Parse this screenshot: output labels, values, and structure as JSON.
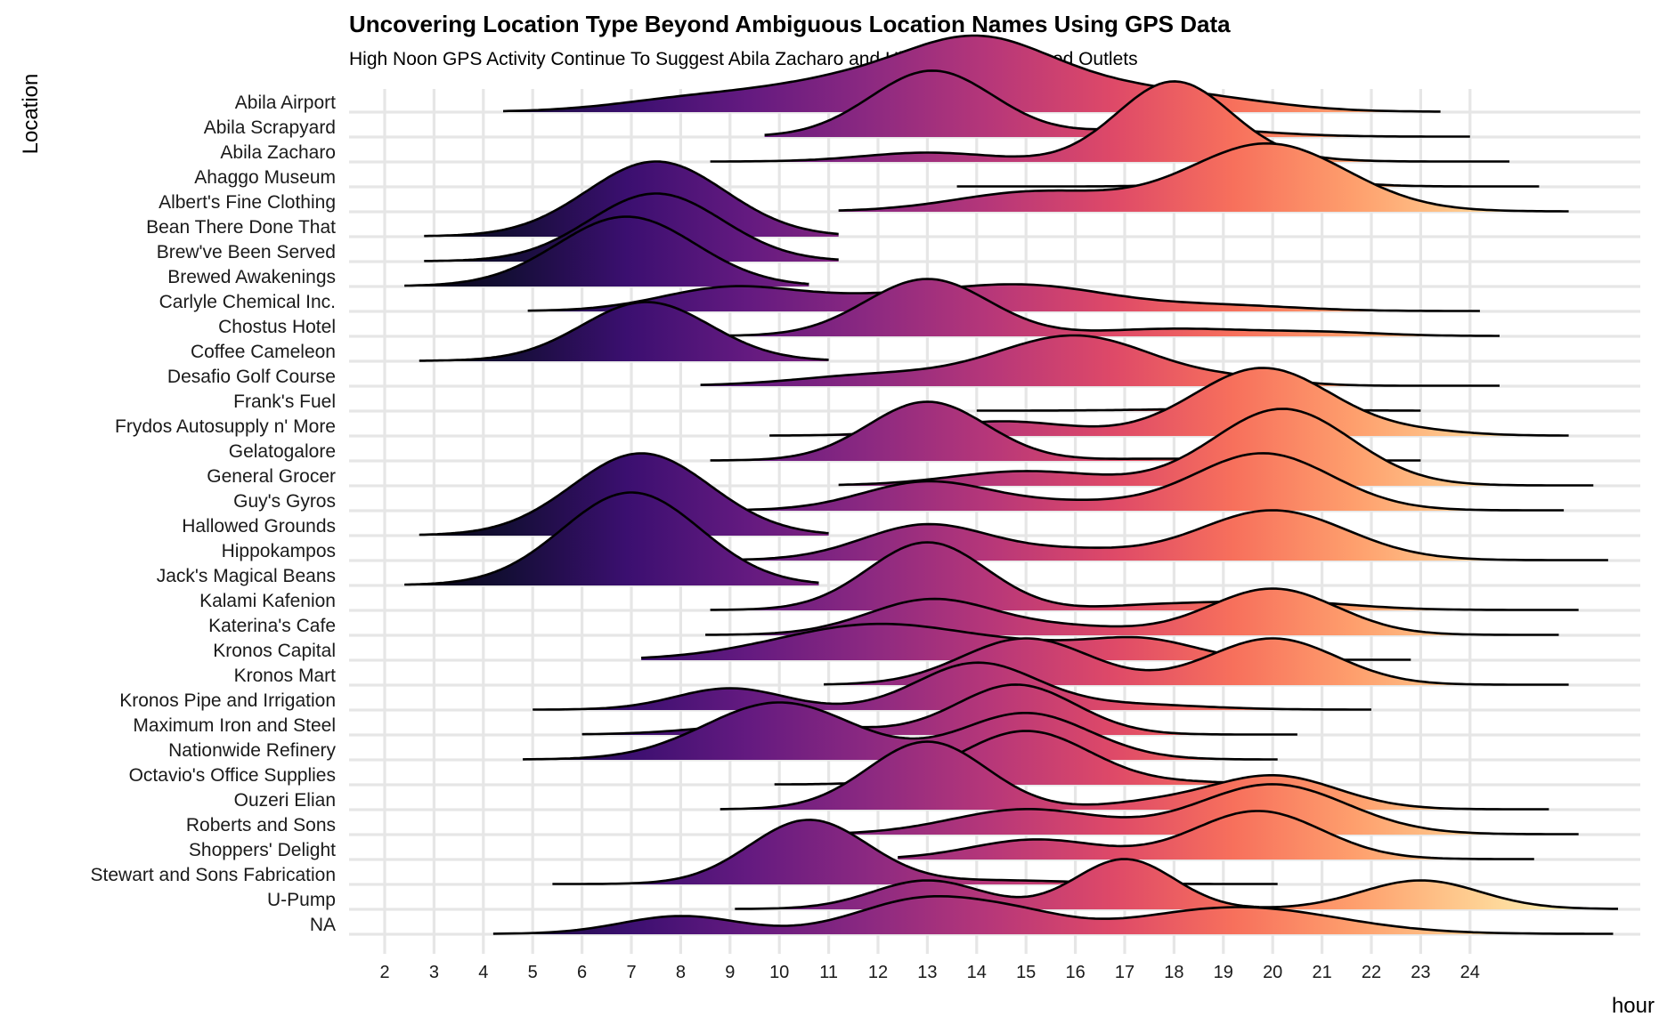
{
  "chart_data": {
    "type": "ridgeline",
    "title": "Uncovering Location Type Beyond Ambiguous Location Names Using GPS Data",
    "subtitle": "High Noon GPS Activity Continue To Suggest Abila Zacharo and Hippokampos As Food Outlets",
    "xlabel": "hour",
    "ylabel": "Location",
    "xlim": [
      1.4,
      26.8
    ],
    "x_ticks": [
      2,
      3,
      4,
      5,
      6,
      7,
      8,
      9,
      10,
      11,
      12,
      13,
      14,
      15,
      16,
      17,
      18,
      19,
      20,
      21,
      22,
      23,
      24
    ],
    "grid": true,
    "fill_gradient": "magma (by hour)",
    "series": [
      {
        "name": "Abila Airport",
        "range": [
          4.4,
          23.4
        ],
        "peaks": [
          [
            8,
            0.25,
            1.5
          ],
          [
            12,
            1.0,
            2.2
          ],
          [
            14.1,
            1.25,
            1.4
          ],
          [
            16.5,
            0.6,
            1.8
          ],
          [
            19,
            0.2,
            1.5
          ]
        ]
      },
      {
        "name": "Abila Scrapyard",
        "range": [
          9.7,
          24.0
        ],
        "peaks": [
          [
            13.1,
            1.85,
            1.25
          ],
          [
            18.0,
            0.25,
            1.6
          ]
        ]
      },
      {
        "name": "Abila Zacharo",
        "range": [
          8.6,
          24.8
        ],
        "peaks": [
          [
            13.0,
            0.25,
            1.3
          ],
          [
            18.0,
            2.25,
            1.15
          ],
          [
            20.5,
            0.05,
            1.0
          ]
        ]
      },
      {
        "name": "Ahaggo Museum",
        "range": [
          13.6,
          25.4
        ],
        "peaks": [
          [
            20.0,
            0.25,
            1.2
          ]
        ]
      },
      {
        "name": "Albert's Fine Clothing",
        "range": [
          11.2,
          26.0
        ],
        "peaks": [
          [
            15.2,
            0.55,
            1.6
          ],
          [
            19.9,
            1.9,
            1.6
          ]
        ]
      },
      {
        "name": "Bean There Done That",
        "range": [
          2.8,
          11.2
        ],
        "peaks": [
          [
            7.5,
            2.1,
            1.4
          ]
        ]
      },
      {
        "name": "Brew've Been Served",
        "range": [
          2.8,
          11.2
        ],
        "peaks": [
          [
            7.5,
            1.9,
            1.35
          ]
        ]
      },
      {
        "name": "Brewed Awakenings",
        "range": [
          2.4,
          10.6
        ],
        "peaks": [
          [
            6.9,
            1.95,
            1.4
          ]
        ]
      },
      {
        "name": "Carlyle Chemical Inc.",
        "range": [
          4.9,
          24.2
        ],
        "peaks": [
          [
            9.0,
            0.65,
            1.4
          ],
          [
            12.0,
            0.3,
            1.5
          ],
          [
            15.0,
            0.7,
            1.7
          ],
          [
            19.0,
            0.15,
            1.5
          ]
        ]
      },
      {
        "name": "Chostus Hotel",
        "range": [
          9.0,
          24.6
        ],
        "peaks": [
          [
            13.0,
            1.6,
            1.25
          ],
          [
            18.0,
            0.2,
            1.5
          ],
          [
            21.0,
            0.1,
            1.2
          ]
        ]
      },
      {
        "name": "Coffee Cameleon",
        "range": [
          2.7,
          11.0
        ],
        "peaks": [
          [
            7.3,
            1.65,
            1.3
          ]
        ]
      },
      {
        "name": "Desafio Golf Course",
        "range": [
          8.4,
          24.6
        ],
        "peaks": [
          [
            12.0,
            0.3,
            1.6
          ],
          [
            16.0,
            1.4,
            1.6
          ],
          [
            19.5,
            0.15,
            1.0
          ]
        ]
      },
      {
        "name": "Frank's Fuel",
        "range": [
          14.0,
          23.0
        ],
        "peaks": [
          [
            19.0,
            0.05,
            1.5
          ]
        ]
      },
      {
        "name": "Frydos Autosupply n' More",
        "range": [
          9.8,
          26.0
        ],
        "peaks": [
          [
            14.5,
            0.4,
            1.4
          ],
          [
            19.8,
            1.9,
            1.4
          ],
          [
            23.0,
            0.1,
            1.0
          ]
        ]
      },
      {
        "name": "Gelatogalore",
        "range": [
          8.6,
          23.0
        ],
        "peaks": [
          [
            13.0,
            1.65,
            1.2
          ],
          [
            18.0,
            0.05,
            1.5
          ]
        ]
      },
      {
        "name": "General Grocer",
        "range": [
          11.2,
          26.5
        ],
        "peaks": [
          [
            15.0,
            0.4,
            1.5
          ],
          [
            20.2,
            2.15,
            1.4
          ]
        ]
      },
      {
        "name": "Guy's Gyros",
        "range": [
          9.1,
          25.9
        ],
        "peaks": [
          [
            13.0,
            0.8,
            1.3
          ],
          [
            16.0,
            0.2,
            1.3
          ],
          [
            19.8,
            1.6,
            1.4
          ]
        ]
      },
      {
        "name": "Hallowed Grounds",
        "range": [
          2.7,
          11.0
        ],
        "peaks": [
          [
            7.2,
            2.3,
            1.4
          ]
        ]
      },
      {
        "name": "Hippokampos",
        "range": [
          8.9,
          26.8
        ],
        "peaks": [
          [
            13.0,
            1.0,
            1.3
          ],
          [
            16.0,
            0.25,
            1.2
          ],
          [
            20.0,
            1.4,
            1.5
          ]
        ]
      },
      {
        "name": "Jack's Magical Beans",
        "range": [
          2.4,
          10.8
        ],
        "peaks": [
          [
            7.0,
            2.6,
            1.4
          ]
        ]
      },
      {
        "name": "Kalami Kafenion",
        "range": [
          8.6,
          26.2
        ],
        "peaks": [
          [
            13.0,
            1.9,
            1.2
          ],
          [
            17.5,
            0.1,
            1.0
          ],
          [
            20.0,
            0.25,
            1.5
          ]
        ]
      },
      {
        "name": "Katerina's Cafe",
        "range": [
          8.5,
          25.8
        ],
        "peaks": [
          [
            13.1,
            1.0,
            1.3
          ],
          [
            16.0,
            0.2,
            1.2
          ],
          [
            20.0,
            1.3,
            1.3
          ]
        ]
      },
      {
        "name": "Kronos Capital",
        "range": [
          7.2,
          22.8
        ],
        "peaks": [
          [
            12.0,
            1.0,
            2.0
          ],
          [
            16.0,
            0.3,
            1.5
          ],
          [
            17.5,
            0.4,
            1.0
          ]
        ]
      },
      {
        "name": "Kronos Mart",
        "range": [
          10.9,
          26.0
        ],
        "peaks": [
          [
            15.0,
            1.3,
            1.3
          ],
          [
            20.0,
            1.3,
            1.3
          ]
        ]
      },
      {
        "name": "Kronos Pipe and Irrigation",
        "range": [
          5.0,
          22.0
        ],
        "peaks": [
          [
            9.0,
            0.6,
            1.1
          ],
          [
            14.0,
            1.3,
            1.2
          ],
          [
            17.0,
            0.15,
            1.5
          ]
        ]
      },
      {
        "name": "Maximum Iron and Steel",
        "range": [
          6.0,
          20.5
        ],
        "peaks": [
          [
            10.0,
            0.3,
            1.5
          ],
          [
            14.8,
            1.4,
            1.2
          ]
        ]
      },
      {
        "name": "Nationwide Refinery",
        "range": [
          4.8,
          20.1
        ],
        "peaks": [
          [
            10.0,
            1.6,
            1.5
          ],
          [
            15.0,
            1.3,
            1.3
          ]
        ]
      },
      {
        "name": "Octavio's Office Supplies",
        "range": [
          9.9,
          20.1
        ],
        "peaks": [
          [
            15.0,
            1.5,
            1.3
          ],
          [
            18.5,
            0.05,
            1.0
          ]
        ]
      },
      {
        "name": "Ouzeri Elian",
        "range": [
          8.8,
          25.6
        ],
        "peaks": [
          [
            13.0,
            1.9,
            1.2
          ],
          [
            17.5,
            0.15,
            1.0
          ],
          [
            20.0,
            0.95,
            1.3
          ]
        ]
      },
      {
        "name": "Roberts and Sons",
        "range": [
          10.9,
          26.2
        ],
        "peaks": [
          [
            15.0,
            0.7,
            1.5
          ],
          [
            20.0,
            1.4,
            1.5
          ]
        ]
      },
      {
        "name": "Shoppers' Delight",
        "range": [
          12.4,
          25.3
        ],
        "peaks": [
          [
            15.2,
            0.55,
            1.3
          ],
          [
            19.7,
            1.35,
            1.3
          ]
        ]
      },
      {
        "name": "Stewart and Sons Fabrication",
        "range": [
          5.4,
          20.1
        ],
        "peaks": [
          [
            10.6,
            1.8,
            1.2
          ],
          [
            14.5,
            0.1,
            1.5
          ]
        ]
      },
      {
        "name": "U-Pump",
        "range": [
          9.1,
          27.0
        ],
        "peaks": [
          [
            13.0,
            0.8,
            1.1
          ],
          [
            17.0,
            1.4,
            1.0
          ],
          [
            23.0,
            0.8,
            1.2
          ]
        ]
      },
      {
        "name": "NA",
        "range": [
          4.2,
          26.9
        ],
        "peaks": [
          [
            8.0,
            0.5,
            1.2
          ],
          [
            13.0,
            1.0,
            1.4
          ],
          [
            15.0,
            0.3,
            1.0
          ],
          [
            19.3,
            0.75,
            2.0
          ]
        ]
      }
    ]
  }
}
